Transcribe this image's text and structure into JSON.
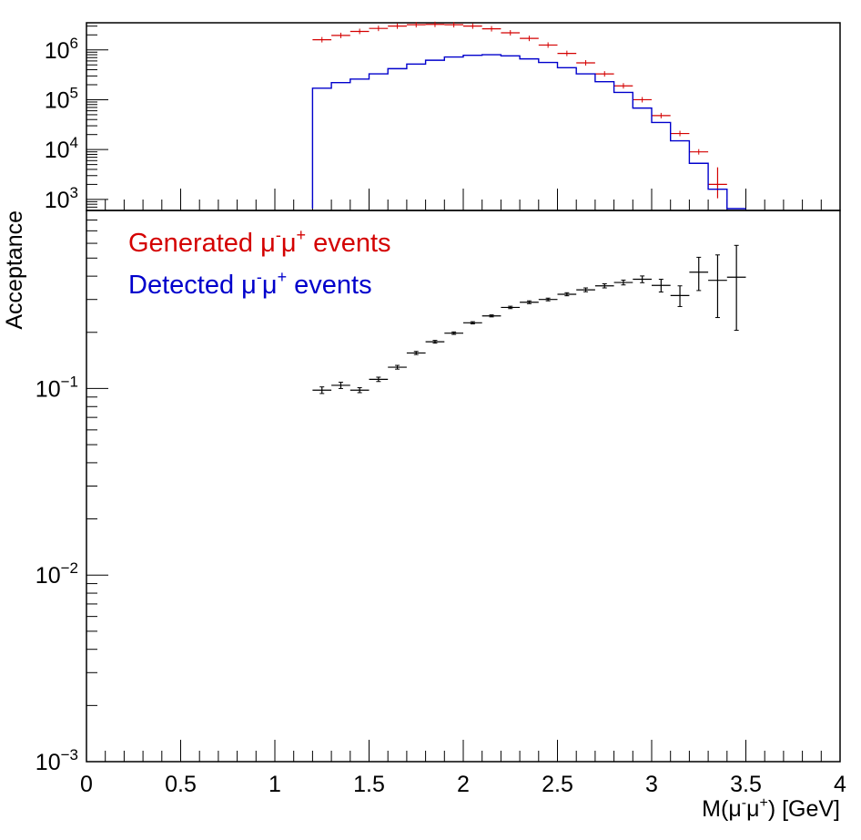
{
  "chart_data": [
    {
      "type": "histogram",
      "panel": "top",
      "scale": {
        "y": "log"
      },
      "xlim": [
        0,
        4
      ],
      "ylim": [
        600,
        3500000
      ],
      "ytick_labels": [
        {
          "value": 1000,
          "base": "10",
          "exp": "3"
        },
        {
          "value": 10000,
          "base": "10",
          "exp": "4"
        },
        {
          "value": 100000,
          "base": "10",
          "exp": "5"
        },
        {
          "value": 1000000,
          "base": "10",
          "exp": "6"
        }
      ],
      "bin_edges": [
        1.2,
        1.3,
        1.4,
        1.5,
        1.6,
        1.7,
        1.8,
        1.9,
        2.0,
        2.1,
        2.2,
        2.3,
        2.4,
        2.5,
        2.6,
        2.7,
        2.8,
        2.9,
        3.0,
        3.1,
        3.2,
        3.3,
        3.4,
        3.5
      ],
      "series": [
        {
          "legend_label": {
            "main": "Generated μ",
            "sup1": "-",
            "mid": "μ",
            "sup2": "+",
            "tail": " events"
          },
          "style": "markers with x error bars",
          "color": "#d40000",
          "values": [
            1600000,
            1950000,
            2350000,
            2700000,
            3000000,
            3200000,
            3250000,
            3200000,
            3000000,
            2650000,
            2200000,
            1700000,
            1250000,
            850000,
            550000,
            330000,
            190000,
            100000,
            48000,
            21000,
            9000,
            2000,
            null
          ]
        },
        {
          "legend_label": {
            "main": "Detected μ",
            "sup1": "-",
            "mid": "μ",
            "sup2": "+",
            "tail": " events"
          },
          "style": "step histogram",
          "color": "#0000cc",
          "values": [
            170000,
            220000,
            260000,
            330000,
            420000,
            520000,
            620000,
            720000,
            780000,
            800000,
            760000,
            660000,
            560000,
            440000,
            330000,
            230000,
            140000,
            68000,
            35000,
            15000,
            5300,
            1600,
            600
          ]
        }
      ]
    },
    {
      "type": "scatter",
      "panel": "bottom",
      "scale": {
        "y": "log"
      },
      "xlabel": {
        "pre": "M(μ",
        "sup1": "-",
        "mid": "μ",
        "sup2": "+",
        "post": ") [GeV]"
      },
      "ylabel": "Acceptance",
      "xlim": [
        0,
        4
      ],
      "ylim": [
        0.001,
        0.9
      ],
      "xtick_labels": [
        "0",
        "0.5",
        "1",
        "1.5",
        "2",
        "2.5",
        "3",
        "3.5",
        "4"
      ],
      "ytick_labels": [
        {
          "value": 0.001,
          "base": "10",
          "exp": "−3"
        },
        {
          "value": 0.01,
          "base": "10",
          "exp": "−2"
        },
        {
          "value": 0.1,
          "base": "10",
          "exp": "−1"
        }
      ],
      "series": [
        {
          "color": "#000000",
          "x": [
            1.25,
            1.35,
            1.45,
            1.55,
            1.65,
            1.75,
            1.85,
            1.95,
            2.05,
            2.15,
            2.25,
            2.35,
            2.45,
            2.55,
            2.65,
            2.75,
            2.85,
            2.95,
            3.05,
            3.15,
            3.25,
            3.35,
            3.45
          ],
          "y": [
            0.098,
            0.104,
            0.098,
            0.112,
            0.13,
            0.155,
            0.178,
            0.198,
            0.225,
            0.245,
            0.272,
            0.29,
            0.3,
            0.32,
            0.338,
            0.355,
            0.37,
            0.385,
            0.357,
            0.315,
            0.42,
            0.38,
            0.395
          ],
          "yerr": [
            0.004,
            0.004,
            0.003,
            0.003,
            0.003,
            0.003,
            0.003,
            0.003,
            0.003,
            0.003,
            0.004,
            0.005,
            0.005,
            0.006,
            0.008,
            0.009,
            0.011,
            0.016,
            0.028,
            0.04,
            0.085,
            0.14,
            0.19
          ],
          "xerr": 0.05
        }
      ]
    }
  ]
}
